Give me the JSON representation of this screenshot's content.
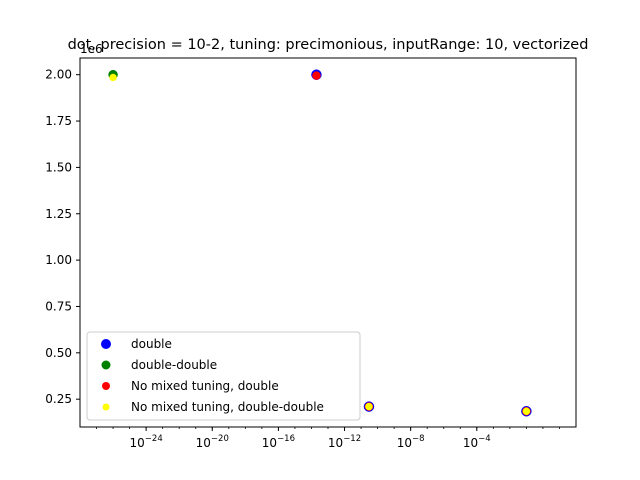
{
  "chart_data": {
    "type": "scatter",
    "title": "dot, precision = 10-2, tuning: precimonious, inputRange: 10, vectorized",
    "xlabel": "",
    "ylabel": "",
    "x_scale": "log",
    "xlim": [
      1e-28,
      100.0
    ],
    "ylim": [
      100000,
      2090000
    ],
    "y_offset_label": "1e6",
    "x_ticks": [
      {
        "value": 1e-24,
        "base": "10",
        "exp": "−24"
      },
      {
        "value": 1e-20,
        "base": "10",
        "exp": "−20"
      },
      {
        "value": 1e-16,
        "base": "10",
        "exp": "−16"
      },
      {
        "value": 1e-12,
        "base": "10",
        "exp": "−12"
      },
      {
        "value": 1e-08,
        "base": "10",
        "exp": "−8"
      },
      {
        "value": 0.0001,
        "base": "10",
        "exp": "−4"
      }
    ],
    "y_ticks": [
      {
        "value": 250000,
        "label": "0.25"
      },
      {
        "value": 500000,
        "label": "0.50"
      },
      {
        "value": 750000,
        "label": "0.75"
      },
      {
        "value": 1000000,
        "label": "1.00"
      },
      {
        "value": 1250000,
        "label": "1.25"
      },
      {
        "value": 1500000,
        "label": "1.50"
      },
      {
        "value": 1750000,
        "label": "1.75"
      },
      {
        "value": 2000000,
        "label": "2.00"
      }
    ],
    "grid": false,
    "legend_position": "lower-left",
    "series": [
      {
        "name": "double",
        "color": "#0000ff",
        "size": 10,
        "points": [
          {
            "x": 2e-14,
            "y": 2000000
          },
          {
            "x": 3e-11,
            "y": 210000
          },
          {
            "x": 0.1,
            "y": 185000
          }
        ]
      },
      {
        "name": "double-double",
        "color": "#008000",
        "size": 9,
        "points": [
          {
            "x": 1e-26,
            "y": 2000000
          }
        ]
      },
      {
        "name": "No mixed tuning, double",
        "color": "#ff0000",
        "size": 8,
        "points": [
          {
            "x": 2e-14,
            "y": 1995000
          },
          {
            "x": 3e-11,
            "y": 210000
          },
          {
            "x": 0.1,
            "y": 185000
          }
        ]
      },
      {
        "name": "No mixed tuning, double-double",
        "color": "#ffff00",
        "size": 7,
        "points": [
          {
            "x": 1e-26,
            "y": 1985000
          },
          {
            "x": 3e-11,
            "y": 210000
          },
          {
            "x": 0.1,
            "y": 185000
          }
        ]
      }
    ]
  }
}
